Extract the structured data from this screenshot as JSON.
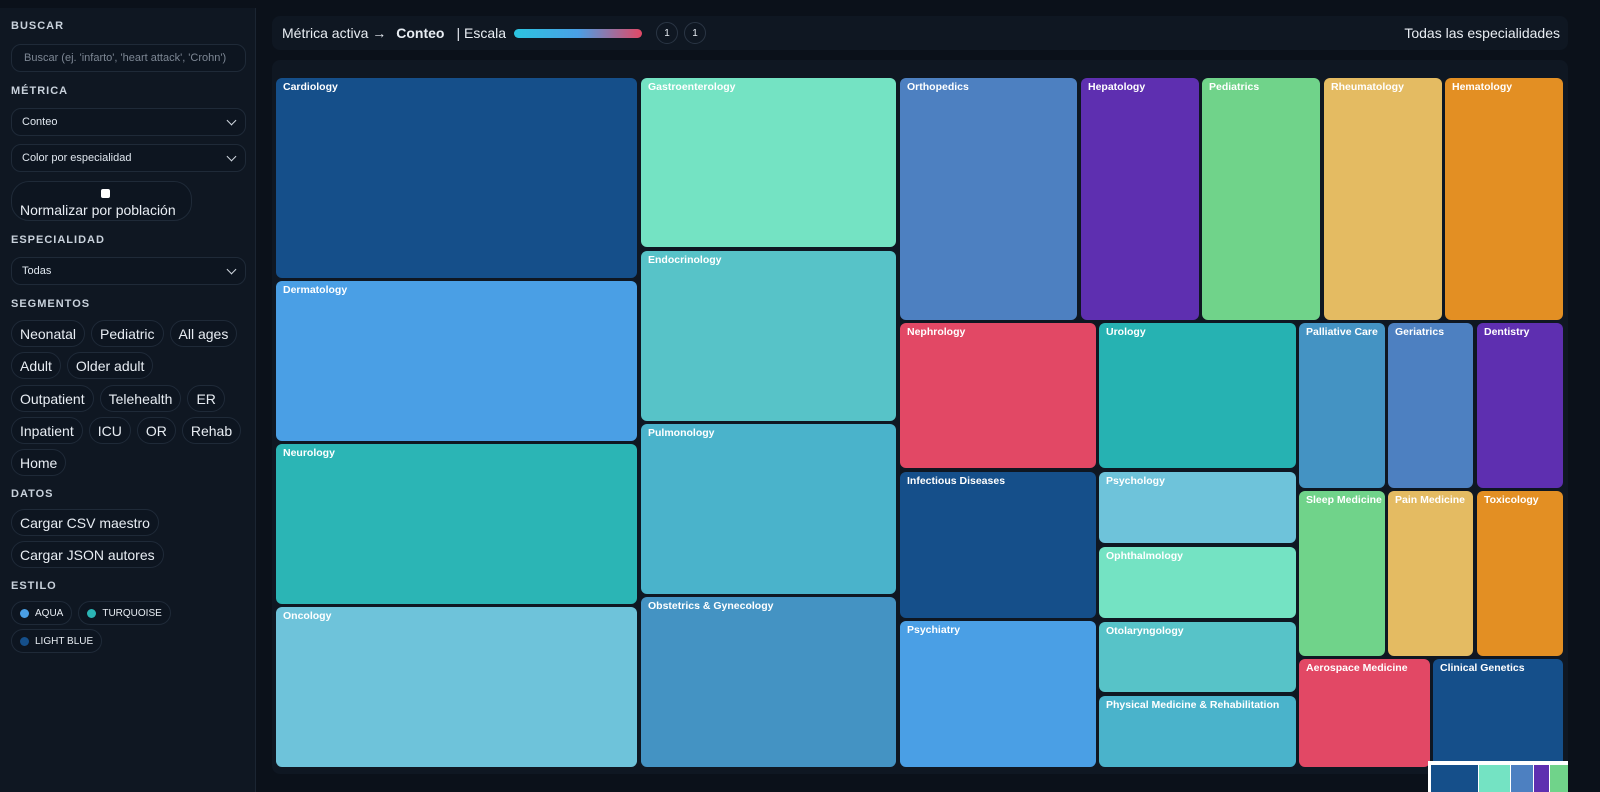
{
  "sidebar": {
    "search": {
      "label": "BUSCAR",
      "placeholder": "Buscar (ej. 'infarto', 'heart attack', 'Crohn')"
    },
    "metric": {
      "label": "MÉTRICA",
      "options": [
        "Conteo",
        "Color por especialidad"
      ],
      "normalize": "Normalizar por población"
    },
    "specialty": {
      "label": "ESPECIALIDAD",
      "value": "Todas"
    },
    "segments": {
      "label": "SEGMENTOS",
      "rows": [
        [
          "Neonatal",
          "Pediatric",
          "All ages"
        ],
        [
          "Adult",
          "Older adult"
        ],
        [
          "Outpatient",
          "Telehealth",
          "ER"
        ],
        [
          "Inpatient",
          "ICU",
          "OR",
          "Rehab"
        ],
        [
          "Home"
        ]
      ]
    },
    "data": {
      "label": "DATOS",
      "buttons": [
        "Cargar CSV maestro",
        "Cargar JSON autores"
      ]
    },
    "style": {
      "label": "ESTILO",
      "options": [
        {
          "name": "AQUA",
          "color": "#4a9fe5"
        },
        {
          "name": "TURQUOISE",
          "color": "#2bb5b5"
        },
        {
          "name": "LIGHT BLUE",
          "color": "#154f8a"
        }
      ]
    }
  },
  "topbar": {
    "metric_label": "Métrica activa →",
    "metric": "Conteo",
    "scale_label": "| Escala",
    "scale_min": "1",
    "scale_max": "1",
    "filter": "Todas las especialidades"
  },
  "treemap": {
    "tiles": [
      {
        "name": "Cardiology",
        "color": "#154f8a"
      },
      {
        "name": "Dermatology",
        "color": "#4a9fe5"
      },
      {
        "name": "Neurology",
        "color": "#2bb5b5"
      },
      {
        "name": "Oncology",
        "color": "#6ec3da"
      },
      {
        "name": "Gastroenterology",
        "color": "#74e3c3"
      },
      {
        "name": "Endocrinology",
        "color": "#57c3c8"
      },
      {
        "name": "Pulmonology",
        "color": "#4ab3cb"
      },
      {
        "name": "Obstetrics & Gynecology",
        "color": "#4493c3"
      },
      {
        "name": "Orthopedics",
        "color": "#4d80c1"
      },
      {
        "name": "Hepatology",
        "color": "#5e2fb0"
      },
      {
        "name": "Pediatrics",
        "color": "#70d38a"
      },
      {
        "name": "Rheumatology",
        "color": "#e4bb62"
      },
      {
        "name": "Hematology",
        "color": "#e38f23"
      },
      {
        "name": "Nephrology",
        "color": "#e24865"
      },
      {
        "name": "Urology",
        "color": "#26b2b2"
      },
      {
        "name": "Infectious Diseases",
        "color": "#154f8a"
      },
      {
        "name": "Psychiatry",
        "color": "#4a9fe5"
      },
      {
        "name": "Psychology",
        "color": "#6ec3da"
      },
      {
        "name": "Ophthalmology",
        "color": "#74e3c3"
      },
      {
        "name": "Otolaryngology",
        "color": "#57c3c8"
      },
      {
        "name": "Physical Medicine & Rehabilitation",
        "color": "#4ab3cb"
      },
      {
        "name": "Palliative Care",
        "color": "#4493c3"
      },
      {
        "name": "Geriatrics",
        "color": "#4d80c1"
      },
      {
        "name": "Dentistry",
        "color": "#5e2fb0"
      },
      {
        "name": "Sleep Medicine",
        "color": "#70d38a"
      },
      {
        "name": "Pain Medicine",
        "color": "#e4bb62"
      },
      {
        "name": "Toxicology",
        "color": "#e38f23"
      },
      {
        "name": "Aerospace Medicine",
        "color": "#e24865"
      },
      {
        "name": "Clinical Genetics",
        "color": "#154f8a"
      }
    ]
  }
}
